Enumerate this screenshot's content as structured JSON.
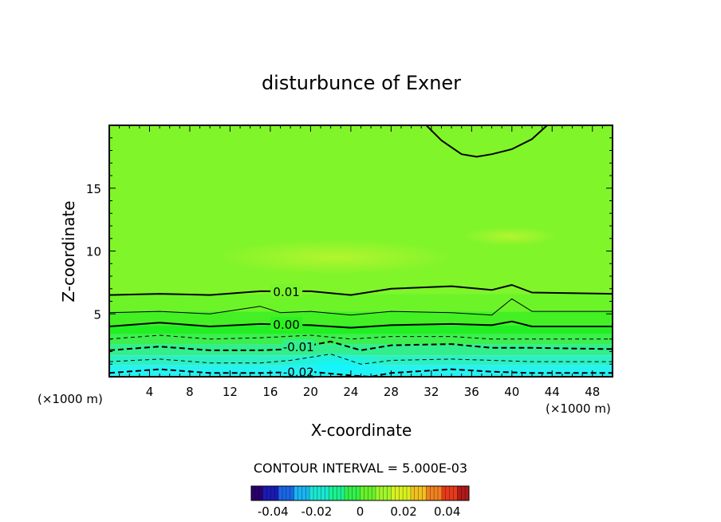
{
  "chart_data": {
    "type": "contour",
    "title": "disturbunce of Exner",
    "xlabel": "X-coordinate",
    "ylabel": "Z-coordinate",
    "x_unit_label": "(×1000 m)",
    "x_unit_label_right": "(×1000 m)",
    "xlim": [
      0,
      50
    ],
    "ylim": [
      0,
      20
    ],
    "x_ticks": [
      4,
      8,
      12,
      16,
      20,
      24,
      28,
      32,
      36,
      40,
      44,
      48
    ],
    "y_ticks": [
      5,
      10,
      15
    ],
    "contour_interval_text": "CONTOUR INTERVAL = 5.000E-03",
    "contour_labels": [
      {
        "text": "0.01",
        "x": 17.6,
        "y": 6.8
      },
      {
        "text": "0.00",
        "x": 17.6,
        "y": 4.2
      },
      {
        "text": "-0.01",
        "x": 18.8,
        "y": 2.4
      },
      {
        "text": "-0.02",
        "x": 18.8,
        "y": 0.4
      }
    ],
    "contours": [
      {
        "level": 0.015,
        "style": "solid-thick",
        "points": [
          [
            31.5,
            20
          ],
          [
            33,
            18.8
          ],
          [
            35,
            17.7
          ],
          [
            36.5,
            17.5
          ],
          [
            38,
            17.7
          ],
          [
            40,
            18.1
          ],
          [
            42,
            18.9
          ],
          [
            43.5,
            20
          ]
        ]
      },
      {
        "level": 0.01,
        "style": "solid-thick",
        "points": [
          [
            0,
            6.5
          ],
          [
            5,
            6.6
          ],
          [
            10,
            6.5
          ],
          [
            15,
            6.8
          ],
          [
            20,
            6.8
          ],
          [
            24,
            6.5
          ],
          [
            28,
            7.0
          ],
          [
            34,
            7.2
          ],
          [
            38,
            6.9
          ],
          [
            40,
            7.3
          ],
          [
            42,
            6.7
          ],
          [
            50,
            6.6
          ]
        ]
      },
      {
        "level": 0.005,
        "style": "solid-thin",
        "points": [
          [
            0,
            5.1
          ],
          [
            5,
            5.2
          ],
          [
            10,
            5.0
          ],
          [
            15,
            5.6
          ],
          [
            17,
            5.1
          ],
          [
            20,
            5.2
          ],
          [
            24,
            4.9
          ],
          [
            28,
            5.2
          ],
          [
            34,
            5.1
          ],
          [
            38,
            4.9
          ],
          [
            40,
            6.2
          ],
          [
            42,
            5.2
          ],
          [
            50,
            5.2
          ]
        ]
      },
      {
        "level": 0.0,
        "style": "solid-thick",
        "points": [
          [
            0,
            4.0
          ],
          [
            5,
            4.3
          ],
          [
            10,
            4.0
          ],
          [
            15,
            4.2
          ],
          [
            20,
            4.1
          ],
          [
            24,
            3.9
          ],
          [
            28,
            4.1
          ],
          [
            34,
            4.2
          ],
          [
            38,
            4.1
          ],
          [
            40,
            4.4
          ],
          [
            42,
            4.0
          ],
          [
            50,
            4.0
          ]
        ]
      },
      {
        "level": -0.005,
        "style": "dashed-thin",
        "points": [
          [
            0,
            3.0
          ],
          [
            5,
            3.3
          ],
          [
            10,
            3.0
          ],
          [
            15,
            3.1
          ],
          [
            20,
            3.3
          ],
          [
            24,
            3.0
          ],
          [
            28,
            3.2
          ],
          [
            34,
            3.2
          ],
          [
            38,
            3.0
          ],
          [
            42,
            3.0
          ],
          [
            50,
            3.0
          ]
        ]
      },
      {
        "level": -0.01,
        "style": "dashed-thick",
        "points": [
          [
            0,
            2.1
          ],
          [
            5,
            2.4
          ],
          [
            10,
            2.1
          ],
          [
            15,
            2.1
          ],
          [
            18,
            2.2
          ],
          [
            22,
            2.8
          ],
          [
            25,
            2.1
          ],
          [
            28,
            2.5
          ],
          [
            34,
            2.6
          ],
          [
            38,
            2.3
          ],
          [
            42,
            2.3
          ],
          [
            50,
            2.2
          ]
        ]
      },
      {
        "level": -0.015,
        "style": "dashed-thin",
        "points": [
          [
            0,
            1.2
          ],
          [
            5,
            1.4
          ],
          [
            10,
            1.1
          ],
          [
            15,
            1.1
          ],
          [
            18,
            1.3
          ],
          [
            22,
            1.8
          ],
          [
            25,
            1.0
          ],
          [
            28,
            1.3
          ],
          [
            34,
            1.4
          ],
          [
            38,
            1.3
          ],
          [
            42,
            1.2
          ],
          [
            50,
            1.2
          ]
        ]
      },
      {
        "level": -0.02,
        "style": "dashed-thick",
        "points": [
          [
            0,
            0.3
          ],
          [
            5,
            0.6
          ],
          [
            10,
            0.3
          ],
          [
            15,
            0.3
          ],
          [
            20,
            0.4
          ],
          [
            24,
            0.1
          ],
          [
            26,
            0.0
          ],
          [
            28,
            0.3
          ],
          [
            34,
            0.6
          ],
          [
            38,
            0.4
          ],
          [
            42,
            0.3
          ],
          [
            50,
            0.3
          ]
        ]
      }
    ],
    "fill_bands": [
      {
        "ylo": 0,
        "yhi": 0.9,
        "color": "#26f2f2"
      },
      {
        "ylo": 0.9,
        "yhi": 1.7,
        "color": "#2cf0c4"
      },
      {
        "ylo": 1.7,
        "yhi": 2.6,
        "color": "#33ee8c"
      },
      {
        "ylo": 2.6,
        "yhi": 3.4,
        "color": "#3cee4e"
      },
      {
        "ylo": 3.4,
        "yhi": 4.1,
        "color": "#22ef22"
      },
      {
        "ylo": 4.1,
        "yhi": 5.2,
        "color": "#44f024"
      },
      {
        "ylo": 5.2,
        "yhi": 6.6,
        "color": "#6cf428"
      },
      {
        "ylo": 6.6,
        "yhi": 20,
        "color": "#80f52a"
      }
    ],
    "colorbar": {
      "ticks": [
        "-0.04",
        "-0.02",
        "0",
        "0.02",
        "0.04"
      ],
      "tick_values": [
        -0.04,
        -0.02,
        0,
        0.02,
        0.04
      ],
      "range": [
        -0.05,
        0.05
      ],
      "colors": [
        "#2a006e",
        "#1a1ab4",
        "#1a66e6",
        "#1ab4f0",
        "#1ae6d0",
        "#1af090",
        "#33f04a",
        "#66f22a",
        "#a0f52a",
        "#d8f020",
        "#f0c020",
        "#f08020",
        "#e83a1a",
        "#b01a1a"
      ]
    }
  }
}
